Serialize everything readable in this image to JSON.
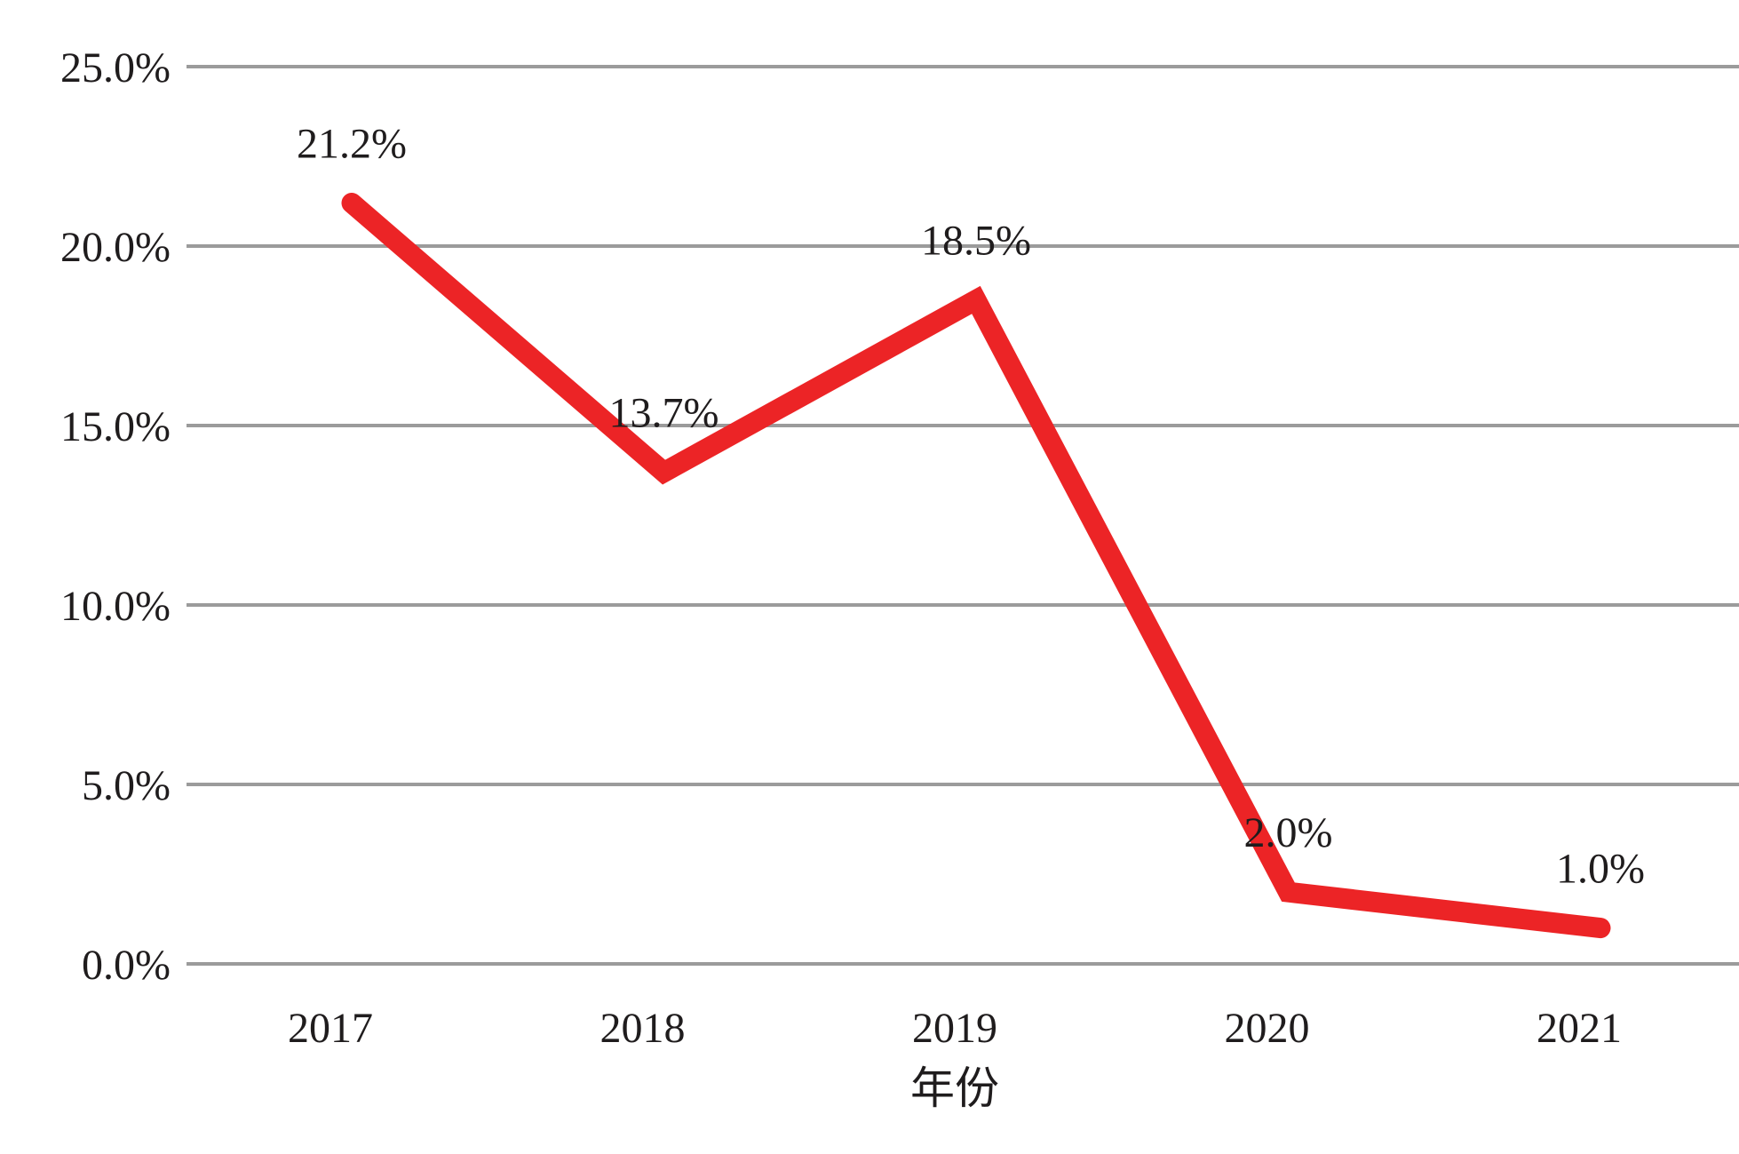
{
  "chart_data": {
    "type": "line",
    "title": "",
    "xlabel": "年份",
    "ylabel": "",
    "categories": [
      "2017",
      "2018",
      "2019",
      "2020",
      "2021"
    ],
    "series": [
      {
        "name": "",
        "values": [
          21.2,
          13.7,
          18.5,
          2.0,
          1.0
        ],
        "point_labels": [
          "21.2%",
          "13.7%",
          "18.5%",
          "2.0%",
          "1.0%"
        ]
      }
    ],
    "ylim": [
      0,
      25
    ],
    "ytick_step": 5,
    "ytick_labels": [
      "0.0%",
      "5.0%",
      "10.0%",
      "15.0%",
      "20.0%",
      "25.0%"
    ],
    "grid": "horizontal",
    "legend_visible": false,
    "colors": {
      "line": "#ec2426",
      "gridline": "#9b9b9b",
      "text": "#1f1c1d",
      "background": "#ffffff"
    }
  }
}
